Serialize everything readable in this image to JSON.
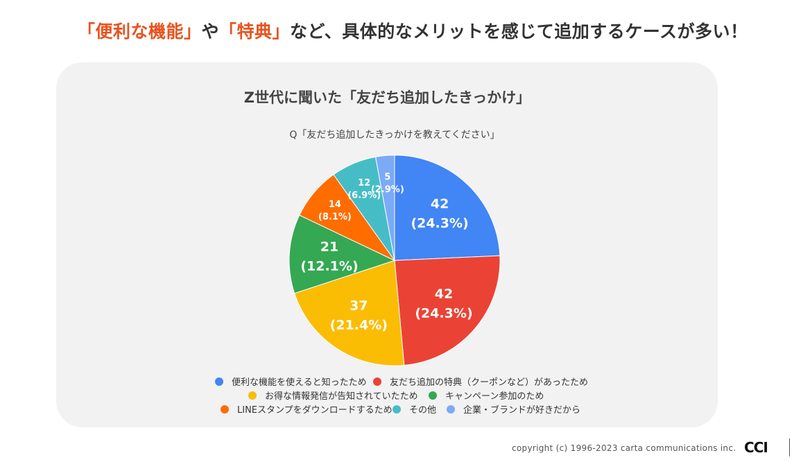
{
  "headline": {
    "part1": "「便利な機能」",
    "part2": "や",
    "part3": "「特典」",
    "part4": "など、具体的なメリットを感じて追加するケースが多い！"
  },
  "colors": {
    "accent": "#e8531f",
    "card_background": "#f2f2f2"
  },
  "chart_data": {
    "type": "pie",
    "title": "Z世代に聞いた「友だち追加したきっかけ」",
    "subtitle": "Q「友だち追加したきっかけを教えてください」",
    "legend_position": "bottom",
    "slices": [
      {
        "name": "便利な機能を使えると知ったため",
        "value": 42,
        "percent": "24.3%",
        "color": "#4285f4"
      },
      {
        "name": "友だち追加の特典（クーポンなど）があったため",
        "value": 42,
        "percent": "24.3%",
        "color": "#ea4335"
      },
      {
        "name": "お得な情報発信が告知されていたため",
        "value": 37,
        "percent": "21.4%",
        "color": "#fbbc04"
      },
      {
        "name": "キャンペーン参加のため",
        "value": 21,
        "percent": "12.1%",
        "color": "#34a853"
      },
      {
        "name": "LINEスタンプをダウンロードするため",
        "value": 14,
        "percent": "8.1%",
        "color": "#ff6d01"
      },
      {
        "name": "その他",
        "value": 12,
        "percent": "6.9%",
        "color": "#46bdc6"
      },
      {
        "name": "企業・ブランドが好きだから",
        "value": 5,
        "percent": "2.9%",
        "color": "#7baaf7"
      }
    ]
  },
  "footer": {
    "copyright": "copyright (c) 1996-2023 carta communications inc.",
    "logo_text": "CCI"
  }
}
